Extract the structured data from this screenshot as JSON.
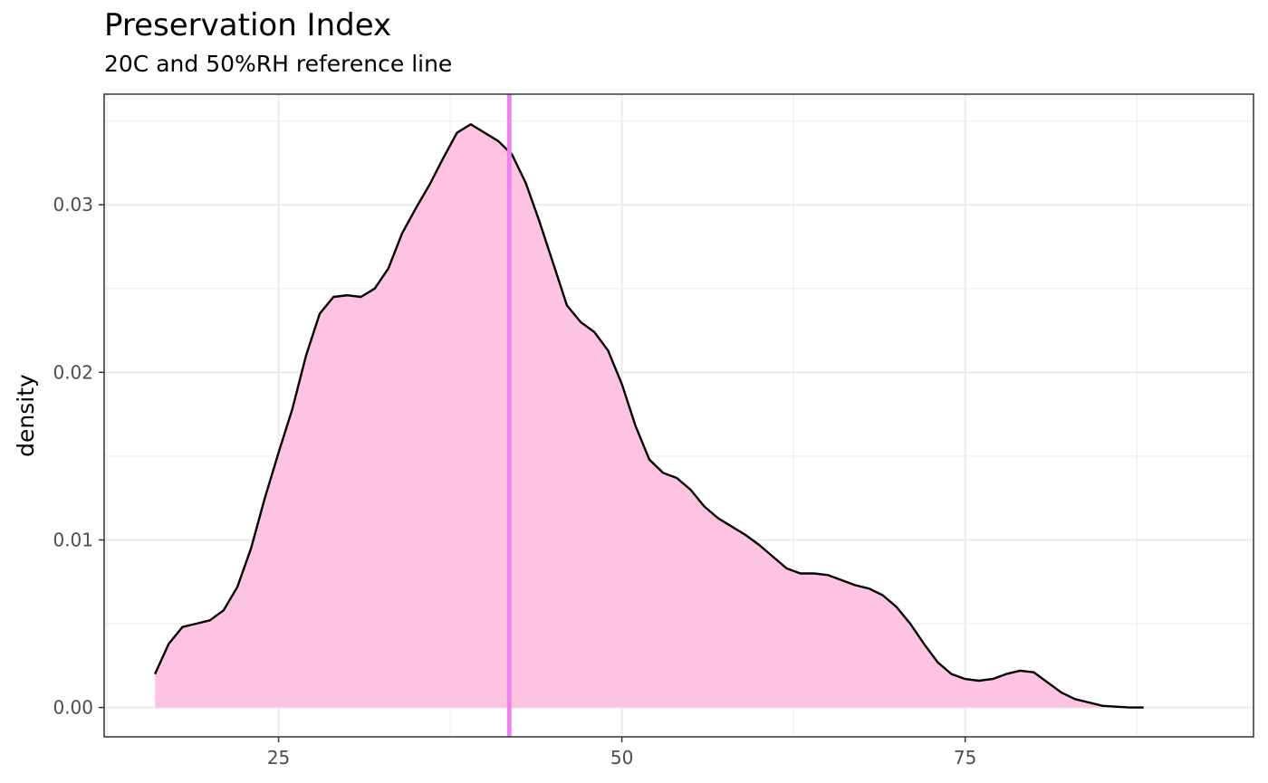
{
  "chart_data": {
    "type": "area",
    "title": "Preservation Index",
    "subtitle": "20C and 50%RH reference line",
    "xlabel": "",
    "ylabel": "density",
    "xlim": [
      12.3,
      96.0
    ],
    "ylim": [
      -0.00175,
      0.0366
    ],
    "x_ticks": [
      25,
      50,
      75
    ],
    "x_tick_labels": [
      "25",
      "50",
      "75"
    ],
    "y_ticks": [
      0.0,
      0.01,
      0.02,
      0.03
    ],
    "y_tick_labels": [
      "0.00",
      "0.01",
      "0.02",
      "0.03"
    ],
    "grid": true,
    "legend": "none",
    "reference_line": {
      "x": 41.8
    },
    "colors": {
      "fill": "#FFC0E0",
      "line": "#000000",
      "reference": "#EE82EE",
      "grid": "#EBEBEB"
    },
    "points": [
      [
        16.0,
        0.002
      ],
      [
        17.0,
        0.0038
      ],
      [
        18.0,
        0.0048
      ],
      [
        19.0,
        0.005
      ],
      [
        20.0,
        0.0052
      ],
      [
        21.0,
        0.0058
      ],
      [
        22.0,
        0.0072
      ],
      [
        23.0,
        0.0095
      ],
      [
        24.0,
        0.0125
      ],
      [
        25.0,
        0.0152
      ],
      [
        26.0,
        0.0178
      ],
      [
        27.0,
        0.021
      ],
      [
        28.0,
        0.0235
      ],
      [
        29.0,
        0.0245
      ],
      [
        30.0,
        0.0246
      ],
      [
        31.0,
        0.0245
      ],
      [
        32.0,
        0.025
      ],
      [
        33.0,
        0.0262
      ],
      [
        34.0,
        0.0283
      ],
      [
        35.0,
        0.0298
      ],
      [
        36.0,
        0.0312
      ],
      [
        37.0,
        0.0328
      ],
      [
        38.0,
        0.0343
      ],
      [
        39.0,
        0.0348
      ],
      [
        40.0,
        0.0343
      ],
      [
        41.0,
        0.0338
      ],
      [
        42.0,
        0.033
      ],
      [
        43.0,
        0.0313
      ],
      [
        44.0,
        0.029
      ],
      [
        45.0,
        0.0265
      ],
      [
        46.0,
        0.024
      ],
      [
        47.0,
        0.023
      ],
      [
        48.0,
        0.0224
      ],
      [
        49.0,
        0.0213
      ],
      [
        50.0,
        0.0193
      ],
      [
        51.0,
        0.0168
      ],
      [
        52.0,
        0.0148
      ],
      [
        53.0,
        0.014
      ],
      [
        54.0,
        0.0137
      ],
      [
        55.0,
        0.013
      ],
      [
        56.0,
        0.012
      ],
      [
        57.0,
        0.0113
      ],
      [
        58.0,
        0.0108
      ],
      [
        59.0,
        0.0103
      ],
      [
        60.0,
        0.0097
      ],
      [
        61.0,
        0.009
      ],
      [
        62.0,
        0.0083
      ],
      [
        63.0,
        0.008
      ],
      [
        64.0,
        0.008
      ],
      [
        65.0,
        0.0079
      ],
      [
        66.0,
        0.0076
      ],
      [
        67.0,
        0.0073
      ],
      [
        68.0,
        0.0071
      ],
      [
        69.0,
        0.0067
      ],
      [
        70.0,
        0.006
      ],
      [
        71.0,
        0.005
      ],
      [
        72.0,
        0.0038
      ],
      [
        73.0,
        0.0027
      ],
      [
        74.0,
        0.002
      ],
      [
        75.0,
        0.0017
      ],
      [
        76.0,
        0.0016
      ],
      [
        77.0,
        0.0017
      ],
      [
        78.0,
        0.002
      ],
      [
        79.0,
        0.0022
      ],
      [
        80.0,
        0.0021
      ],
      [
        81.0,
        0.0015
      ],
      [
        82.0,
        0.0009
      ],
      [
        83.0,
        0.0005
      ],
      [
        84.0,
        0.0003
      ],
      [
        85.0,
        0.0001
      ],
      [
        86.0,
        5e-05
      ],
      [
        87.0,
        0.0
      ],
      [
        88.0,
        0.0
      ]
    ]
  }
}
